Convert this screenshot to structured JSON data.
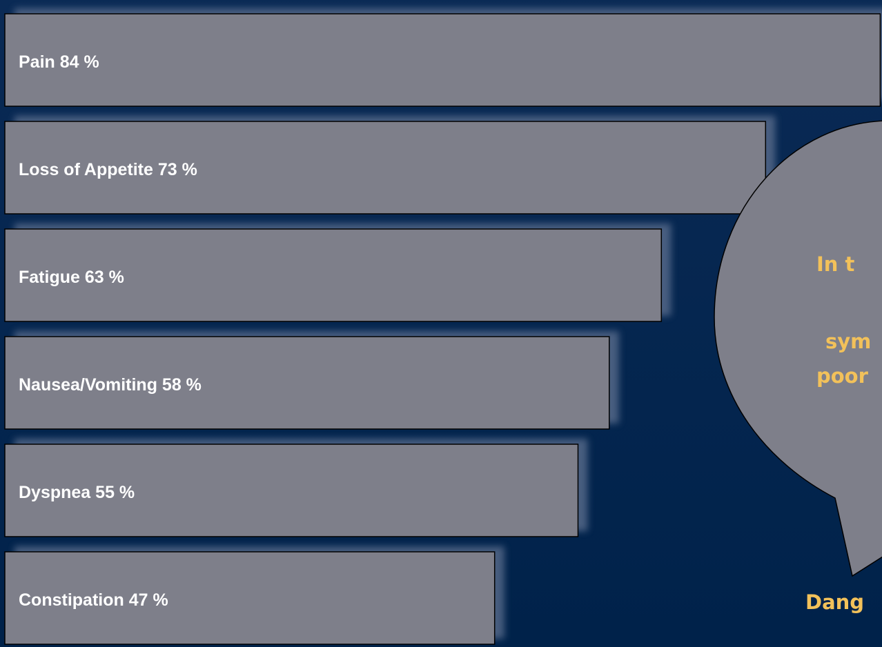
{
  "chart_data": {
    "type": "bar",
    "orientation": "horizontal",
    "categories": [
      "Pain",
      "Loss of Appetite",
      "Fatigue",
      "Nausea/Vomiting",
      "Dyspnea",
      "Constipation"
    ],
    "values": [
      84,
      73,
      63,
      58,
      55,
      47
    ],
    "value_labels": [
      "84 %",
      "73 %",
      "63 %",
      "58 %",
      "55 %",
      "47 %"
    ],
    "color": "#7e7f8a",
    "annotations": [
      "In t",
      "sym",
      "poor",
      "Dang"
    ]
  }
}
